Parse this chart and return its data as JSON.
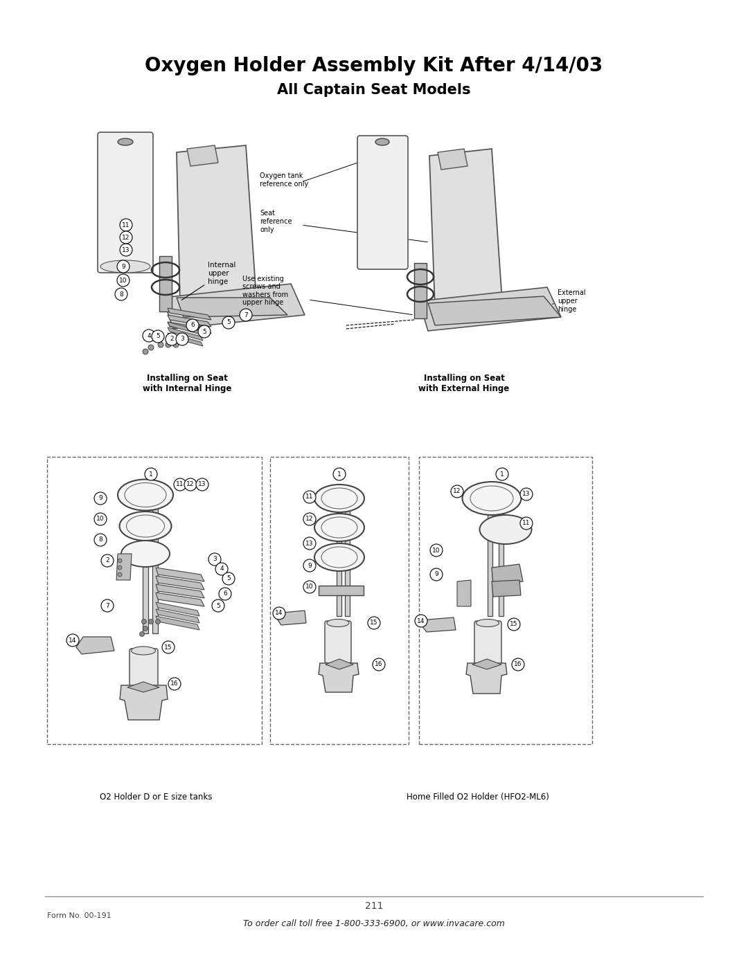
{
  "title_line1": "Oxygen Holder Assembly Kit After 4/14/03",
  "title_line2": "All Captain Seat Models",
  "title_fontsize": 20,
  "subtitle_fontsize": 15,
  "page_number": "211",
  "form_number": "Form No. 00-191",
  "footer_text": "To order call toll free 1-800-333-6900, or www.invacare.com",
  "top_diagram_caption_left": "Installing on Seat\nwith Internal Hinge",
  "top_diagram_caption_right": "Installing on Seat\nwith External Hinge",
  "bottom_caption_left": "O2 Holder D or E size tanks",
  "bottom_caption_right": "Home Filled O2 Holder (HFO2-ML6)",
  "bg_color": "#ffffff",
  "text_color": "#000000",
  "figsize": [
    10.8,
    13.97
  ],
  "dpi": 100
}
